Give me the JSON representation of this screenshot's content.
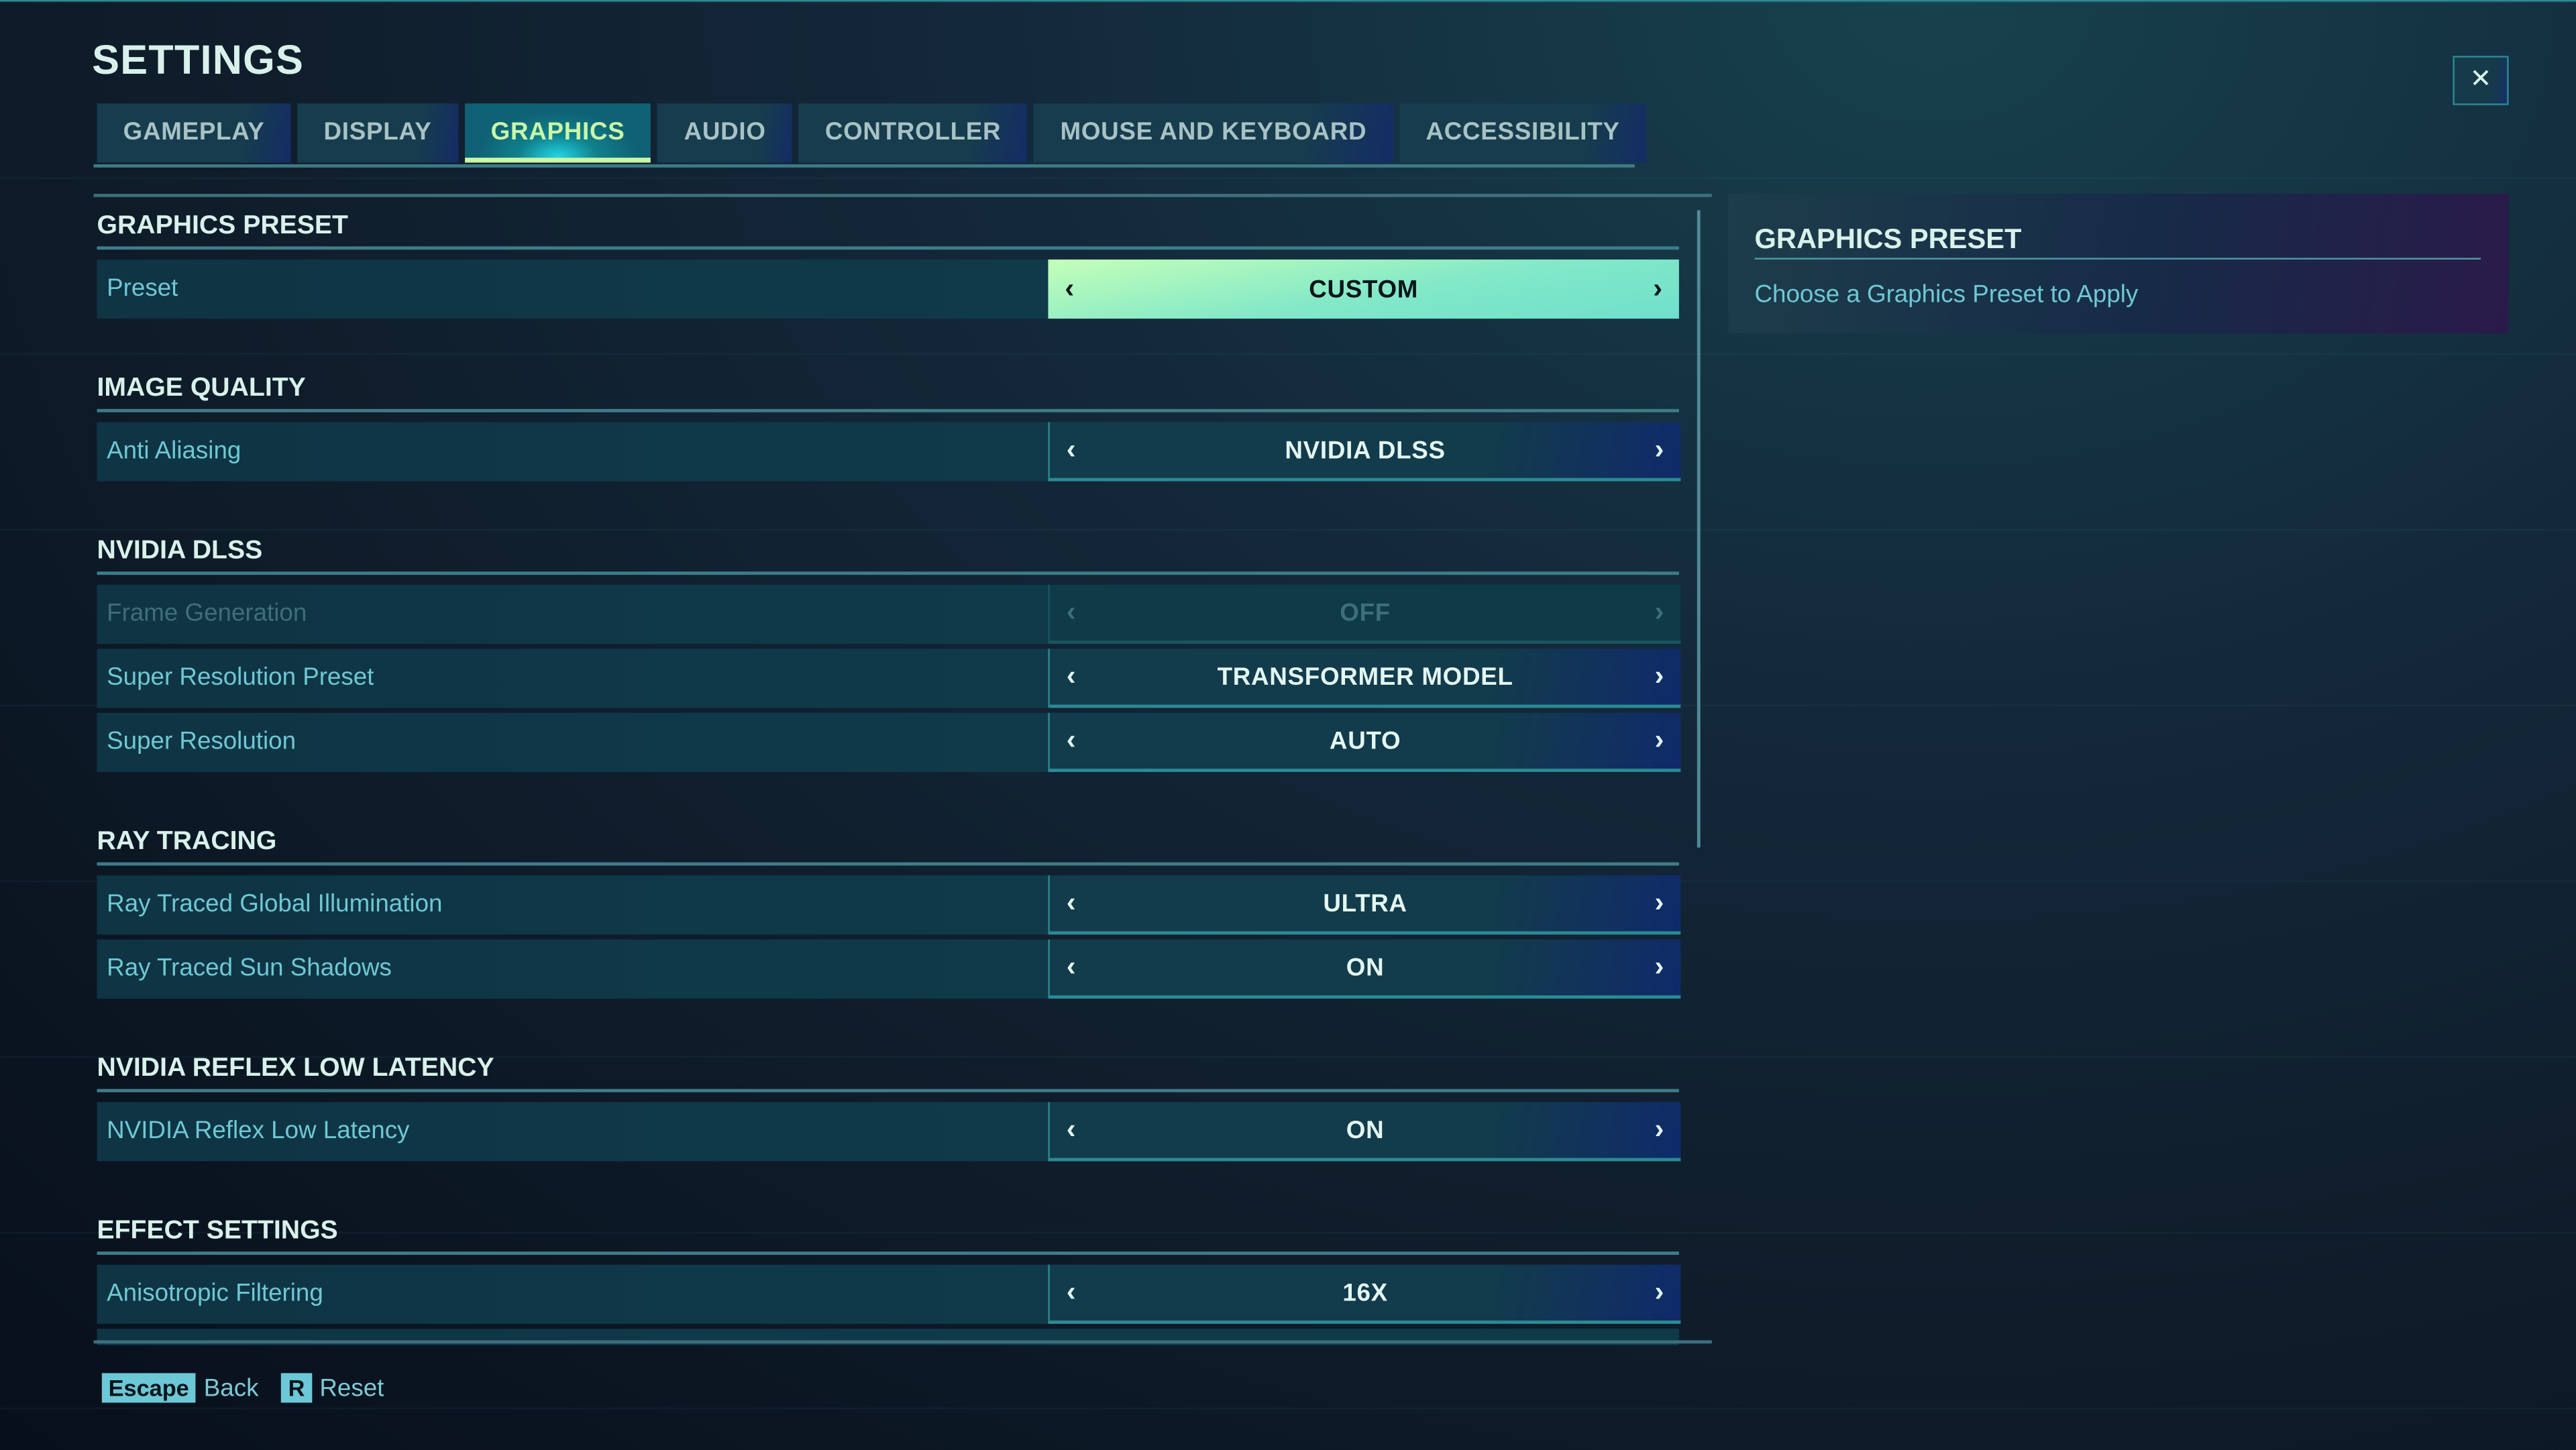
{
  "header": {
    "title": "SETTINGS",
    "close_icon": "collapse-x-icon"
  },
  "tabs": [
    {
      "label": "GAMEPLAY"
    },
    {
      "label": "DISPLAY"
    },
    {
      "label": "GRAPHICS",
      "active": true
    },
    {
      "label": "AUDIO"
    },
    {
      "label": "CONTROLLER"
    },
    {
      "label": "MOUSE AND KEYBOARD"
    },
    {
      "label": "ACCESSIBILITY"
    }
  ],
  "sections": [
    {
      "title": "GRAPHICS PRESET",
      "rows": [
        {
          "label": "Preset",
          "value": "CUSTOM",
          "state": "selected"
        }
      ]
    },
    {
      "title": "IMAGE QUALITY",
      "rows": [
        {
          "label": "Anti Aliasing",
          "value": "NVIDIA DLSS"
        }
      ]
    },
    {
      "title": "NVIDIA DLSS",
      "rows": [
        {
          "label": "Frame Generation",
          "value": "OFF",
          "state": "disabled"
        },
        {
          "label": "Super Resolution Preset",
          "value": "TRANSFORMER MODEL"
        },
        {
          "label": "Super Resolution",
          "value": "AUTO"
        }
      ]
    },
    {
      "title": "RAY TRACING",
      "rows": [
        {
          "label": "Ray Traced Global Illumination",
          "value": "ULTRA"
        },
        {
          "label": "Ray Traced Sun Shadows",
          "value": "ON"
        }
      ]
    },
    {
      "title": "NVIDIA REFLEX LOW LATENCY",
      "rows": [
        {
          "label": "NVIDIA Reflex Low Latency",
          "value": "ON"
        }
      ]
    },
    {
      "title": "EFFECT SETTINGS",
      "rows": [
        {
          "label": "Anisotropic Filtering",
          "value": "16X"
        }
      ]
    }
  ],
  "arrows": {
    "prev": "‹",
    "next": "›"
  },
  "info_panel": {
    "title": "GRAPHICS PRESET",
    "description": "Choose a Graphics Preset to Apply"
  },
  "footer": [
    {
      "key": "Escape",
      "label": "Back"
    },
    {
      "key": "R",
      "label": "Reset"
    }
  ],
  "colors": {
    "accent": "#6cc8d6",
    "selected_tab": "#c9f7a8",
    "selected_value": "#82e8c8"
  }
}
